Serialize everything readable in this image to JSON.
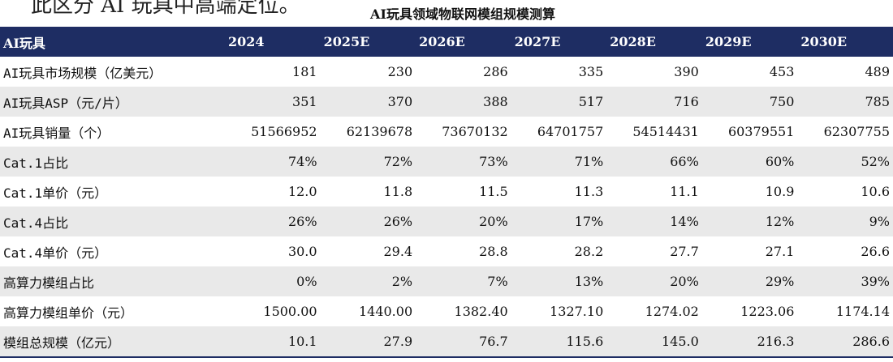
{
  "header_text": "此区分 AI 玩具中高端定位。",
  "title": "AI玩具领域物联网模组规模测算",
  "table": {
    "columns": [
      "AI玩具",
      "2024",
      "2025E",
      "2026E",
      "2027E",
      "2028E",
      "2029E",
      "2030E"
    ],
    "rows": [
      {
        "label": "AI玩具市场规模（亿美元）",
        "values": [
          "181",
          "230",
          "286",
          "335",
          "390",
          "453",
          "489"
        ]
      },
      {
        "label": "AI玩具ASP（元/片）",
        "values": [
          "351",
          "370",
          "388",
          "517",
          "716",
          "750",
          "785"
        ]
      },
      {
        "label": "AI玩具销量（个）",
        "values": [
          "51566952",
          "62139678",
          "73670132",
          "64701757",
          "54514431",
          "60379551",
          "62307755"
        ]
      },
      {
        "label": "Cat.1占比",
        "values": [
          "74%",
          "72%",
          "73%",
          "71%",
          "66%",
          "60%",
          "52%"
        ]
      },
      {
        "label": "Cat.1单价（元）",
        "values": [
          "12.0",
          "11.8",
          "11.5",
          "11.3",
          "11.1",
          "10.9",
          "10.6"
        ]
      },
      {
        "label": "Cat.4占比",
        "values": [
          "26%",
          "26%",
          "20%",
          "17%",
          "14%",
          "12%",
          "9%"
        ]
      },
      {
        "label": "Cat.4单价（元）",
        "values": [
          "30.0",
          "29.4",
          "28.8",
          "28.2",
          "27.7",
          "27.1",
          "26.6"
        ]
      },
      {
        "label": "高算力模组占比",
        "values": [
          "0%",
          "2%",
          "7%",
          "13%",
          "20%",
          "29%",
          "39%"
        ]
      },
      {
        "label": "高算力模组单价（元）",
        "values": [
          "1500.00",
          "1440.00",
          "1382.40",
          "1327.10",
          "1274.02",
          "1223.06",
          "1174.14"
        ]
      },
      {
        "label": "模组总规模（亿元）",
        "values": [
          "10.1",
          "27.9",
          "76.7",
          "115.6",
          "145.0",
          "216.3",
          "286.6"
        ]
      }
    ]
  },
  "colors": {
    "header_bg": "#1e2d63",
    "header_text": "#ffffff",
    "row_shade": "#e9e9e9"
  }
}
